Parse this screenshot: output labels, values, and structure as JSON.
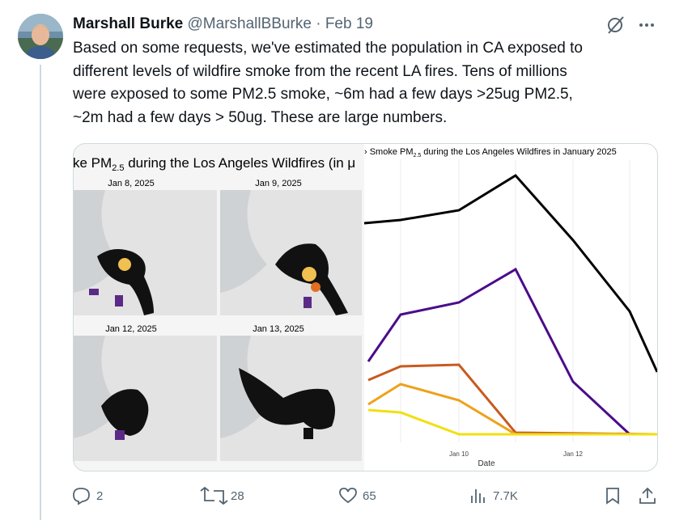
{
  "tweet": {
    "author": {
      "name": "Marshall Burke",
      "handle": "@MarshallBBurke",
      "separator": "·",
      "date": "Feb 19"
    },
    "text_lines": [
      "Based on some requests, we've estimated the population in CA exposed to",
      "different levels of wildfire smoke from the recent LA fires.  Tens of millions",
      "were exposed to some PM2.5 smoke, ~6m had a few days >25ug PM2.5,",
      "~2m had a few days > 50ug.  These are large numbers."
    ],
    "media": {
      "map_title": {
        "before": "ke PM",
        "sub": "2.5",
        "after": " during the Los Angeles Wildfires (in μ"
      },
      "map_dates": [
        "Jan 8, 2025",
        "Jan 9, 2025",
        "Jan 12, 2025",
        "Jan 13, 2025"
      ],
      "chart_title": {
        "before": "› Smoke PM",
        "sub": "2.5",
        "after": " during the Los Angeles Wildfires in January 2025"
      },
      "x_labels": [
        "Jan 10",
        "Jan 12"
      ],
      "x_axis_label": "Date"
    },
    "actions": {
      "replies": "2",
      "reposts": "28",
      "likes": "65",
      "views": "7.7K"
    }
  }
}
